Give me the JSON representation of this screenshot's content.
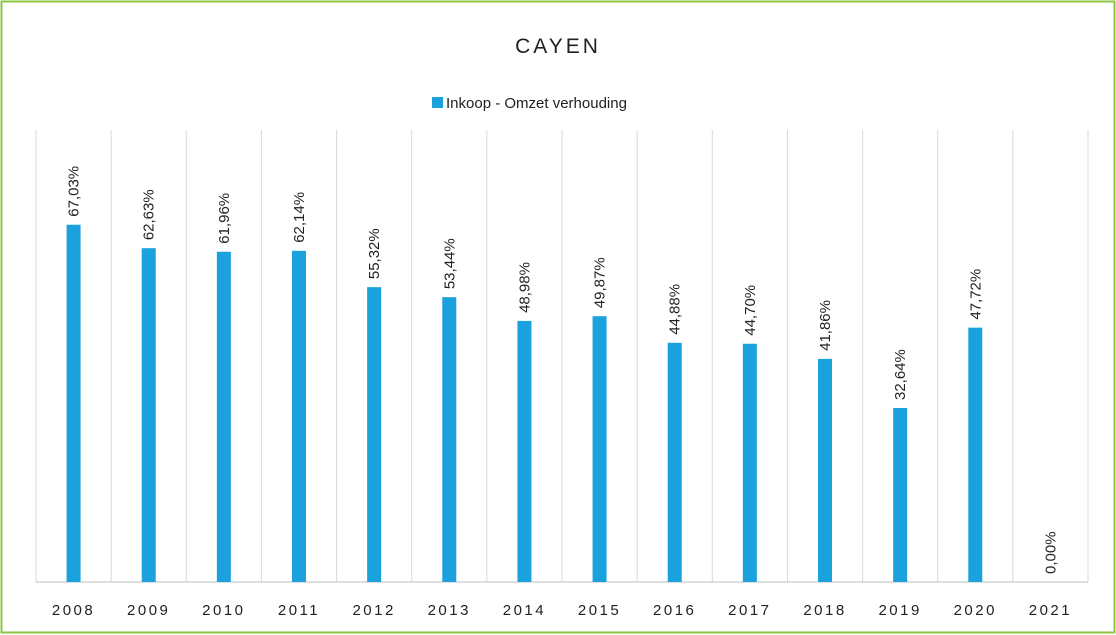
{
  "chart_data": {
    "type": "bar",
    "title": "CAYEN",
    "categories": [
      "2008",
      "2009",
      "2010",
      "2011",
      "2012",
      "2013",
      "2014",
      "2015",
      "2016",
      "2017",
      "2018",
      "2019",
      "2020",
      "2021"
    ],
    "series": [
      {
        "name": "Inkoop - Omzet verhouding",
        "color": "#1ba1de",
        "values": [
          67.03,
          62.63,
          61.96,
          62.14,
          55.32,
          53.44,
          48.98,
          49.87,
          44.88,
          44.7,
          41.86,
          32.64,
          47.72,
          0
        ],
        "value_labels": [
          "67,03%",
          "62,63%",
          "61,96%",
          "62,14%",
          "55,32%",
          "53,44%",
          "48,98%",
          "49,87%",
          "44,88%",
          "44,70%",
          "41,86%",
          "32,64%",
          "47,72%",
          "0,00%"
        ]
      }
    ]
  }
}
